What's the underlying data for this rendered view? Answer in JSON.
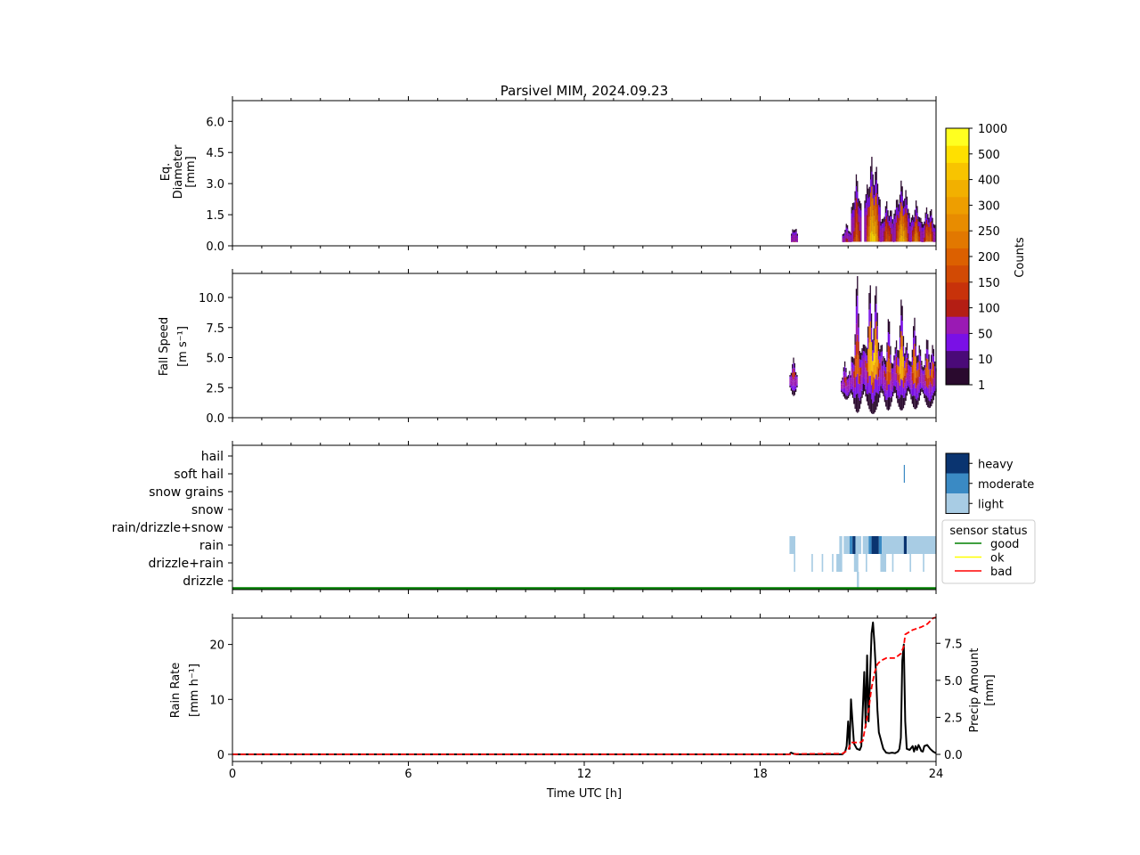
{
  "figure": {
    "title": "Parsivel MIM, 2024.09.23",
    "xlabel": "Time UTC [h]",
    "xticks": [
      "0",
      "6",
      "12",
      "18",
      "24"
    ]
  },
  "colors": {
    "counts_scale": [
      "#2a0a2e",
      "#4a0a78",
      "#7a10e6",
      "#9a1ab4",
      "#b41e14",
      "#c8320a",
      "#d24a04",
      "#dc6000",
      "#e27800",
      "#e88c00",
      "#ee9e00",
      "#f2b000",
      "#f8c400",
      "#ffe000",
      "#ffff20"
    ],
    "intensity": {
      "light": "#a8cce4",
      "moderate": "#3a8ac4",
      "heavy": "#0a3470"
    },
    "sensor": {
      "good": "#008000",
      "ok": "#ffff00",
      "bad": "#ff0000"
    },
    "rain_rate_line": "#000000",
    "precip_amount_line": "#ff0000"
  },
  "chart_data": [
    {
      "type": "heatmap",
      "name": "diameter-panel",
      "ylabel": [
        "Eq.",
        "Diameter",
        "[mm]"
      ],
      "yticks": [
        "0.0",
        "1.5",
        "3.0",
        "4.5",
        "6.0"
      ],
      "ylim": [
        0,
        7
      ],
      "xlim": [
        0,
        24
      ],
      "blobs": [
        {
          "t0": 19.05,
          "t1": 19.25,
          "top": 1.1,
          "peak": 0.6,
          "intensity": 0.25
        },
        {
          "t0": 20.8,
          "t1": 21.1,
          "top": 1.1,
          "peak": 0.6,
          "intensity": 0.3
        },
        {
          "t0": 21.1,
          "t1": 21.45,
          "top": 3.5,
          "peak": 0.7,
          "intensity": 0.45
        },
        {
          "t0": 21.55,
          "t1": 22.1,
          "top": 4.4,
          "peak": 1.0,
          "intensity": 0.85
        },
        {
          "t0": 22.1,
          "t1": 22.55,
          "top": 2.2,
          "peak": 0.8,
          "intensity": 0.45
        },
        {
          "t0": 22.55,
          "t1": 23.1,
          "top": 3.2,
          "peak": 0.9,
          "intensity": 0.75
        },
        {
          "t0": 23.1,
          "t1": 23.5,
          "top": 2.2,
          "peak": 0.8,
          "intensity": 0.6
        },
        {
          "t0": 23.5,
          "t1": 23.95,
          "top": 2.0,
          "peak": 0.8,
          "intensity": 0.55
        }
      ]
    },
    {
      "type": "heatmap",
      "name": "fallspeed-panel",
      "ylabel": [
        "Fall Speed",
        "[m s⁻¹]"
      ],
      "yticks": [
        "0.0",
        "2.5",
        "5.0",
        "7.5",
        "10.0"
      ],
      "ylim": [
        0,
        12
      ],
      "xlim": [
        0,
        24
      ],
      "blobs": [
        {
          "t0": 19.0,
          "t1": 19.25,
          "top": 5.0,
          "low": 1.8,
          "peak": 3.5,
          "intensity": 0.3
        },
        {
          "t0": 20.75,
          "t1": 21.1,
          "top": 5.0,
          "low": 1.5,
          "peak": 3.0,
          "intensity": 0.3
        },
        {
          "t0": 21.1,
          "t1": 21.5,
          "top": 12.0,
          "low": 0.4,
          "peak": 4.0,
          "intensity": 0.5
        },
        {
          "t0": 21.5,
          "t1": 22.15,
          "top": 12.0,
          "low": 0.3,
          "peak": 5.0,
          "intensity": 0.9
        },
        {
          "t0": 22.15,
          "t1": 22.55,
          "top": 8.5,
          "low": 0.6,
          "peak": 4.0,
          "intensity": 0.5
        },
        {
          "t0": 22.55,
          "t1": 23.05,
          "top": 10.0,
          "low": 0.6,
          "peak": 4.5,
          "intensity": 0.8
        },
        {
          "t0": 23.05,
          "t1": 23.5,
          "top": 8.5,
          "low": 0.7,
          "peak": 4.2,
          "intensity": 0.6
        },
        {
          "t0": 23.5,
          "t1": 24.0,
          "top": 7.0,
          "low": 0.8,
          "peak": 4.0,
          "intensity": 0.55
        }
      ]
    },
    {
      "type": "heatmap",
      "name": "precip-type-panel",
      "categories": [
        "drizzle",
        "drizzle+rain",
        "rain",
        "rain/drizzle+snow",
        "snow",
        "snow grains",
        "soft hail",
        "hail"
      ],
      "xlim": [
        0,
        24
      ],
      "cells": [
        {
          "cat": "rain",
          "t0": 19.0,
          "t1": 19.2,
          "level": "light"
        },
        {
          "cat": "rain",
          "t0": 20.7,
          "t1": 20.8,
          "level": "light"
        },
        {
          "cat": "rain",
          "t0": 20.85,
          "t1": 21.05,
          "level": "light"
        },
        {
          "cat": "rain",
          "t0": 21.05,
          "t1": 21.15,
          "level": "moderate"
        },
        {
          "cat": "rain",
          "t0": 21.15,
          "t1": 21.25,
          "level": "heavy"
        },
        {
          "cat": "rain",
          "t0": 21.25,
          "t1": 21.45,
          "level": "light"
        },
        {
          "cat": "rain",
          "t0": 21.5,
          "t1": 21.7,
          "level": "light"
        },
        {
          "cat": "rain",
          "t0": 21.7,
          "t1": 21.8,
          "level": "moderate"
        },
        {
          "cat": "rain",
          "t0": 21.8,
          "t1": 22.05,
          "level": "heavy"
        },
        {
          "cat": "rain",
          "t0": 22.05,
          "t1": 22.15,
          "level": "moderate"
        },
        {
          "cat": "rain",
          "t0": 22.15,
          "t1": 22.9,
          "level": "light"
        },
        {
          "cat": "rain",
          "t0": 22.9,
          "t1": 23.0,
          "level": "heavy"
        },
        {
          "cat": "rain",
          "t0": 23.0,
          "t1": 24.0,
          "level": "light"
        },
        {
          "cat": "drizzle+rain",
          "t0": 19.15,
          "t1": 19.2,
          "level": "light"
        },
        {
          "cat": "drizzle+rain",
          "t0": 19.75,
          "t1": 19.8,
          "level": "light"
        },
        {
          "cat": "drizzle+rain",
          "t0": 20.1,
          "t1": 20.15,
          "level": "light"
        },
        {
          "cat": "drizzle+rain",
          "t0": 20.45,
          "t1": 20.5,
          "level": "light"
        },
        {
          "cat": "drizzle+rain",
          "t0": 20.6,
          "t1": 20.8,
          "level": "light"
        },
        {
          "cat": "drizzle+rain",
          "t0": 21.2,
          "t1": 21.35,
          "level": "light"
        },
        {
          "cat": "drizzle+rain",
          "t0": 21.6,
          "t1": 21.65,
          "level": "light"
        },
        {
          "cat": "drizzle+rain",
          "t0": 22.1,
          "t1": 22.3,
          "level": "light"
        },
        {
          "cat": "drizzle+rain",
          "t0": 22.5,
          "t1": 22.55,
          "level": "light"
        },
        {
          "cat": "drizzle+rain",
          "t0": 23.1,
          "t1": 23.15,
          "level": "light"
        },
        {
          "cat": "drizzle+rain",
          "t0": 23.55,
          "t1": 23.6,
          "level": "light"
        },
        {
          "cat": "drizzle",
          "t0": 21.3,
          "t1": 21.37,
          "level": "light"
        },
        {
          "cat": "soft hail",
          "t0": 22.9,
          "t1": 22.93,
          "level": "moderate"
        }
      ],
      "intensity_legend": [
        "heavy",
        "moderate",
        "light"
      ],
      "sensor_legend": {
        "title": "sensor status",
        "items": [
          "good",
          "ok",
          "bad"
        ]
      },
      "sensor_status_line": "good"
    },
    {
      "type": "line",
      "name": "rain-panel",
      "ylabel": [
        "Rain Rate",
        "[mm h⁻¹]"
      ],
      "y2label": [
        "Precip Amount",
        "[mm]"
      ],
      "yticks": [
        "0",
        "10",
        "20"
      ],
      "y2ticks": [
        "0.0",
        "2.5",
        "5.0",
        "7.5"
      ],
      "ylim": [
        -1.3,
        24.8
      ],
      "y2lim": [
        -0.48,
        9.2
      ],
      "xlim": [
        0,
        24
      ],
      "series": [
        {
          "axis": "left",
          "x": [
            0,
            19.0,
            19.05,
            19.15,
            19.25,
            20.8,
            20.9,
            20.95,
            21.0,
            21.05,
            21.1,
            21.2,
            21.3,
            21.4,
            21.45,
            21.5,
            21.55,
            21.6,
            21.65,
            21.7,
            21.75,
            21.8,
            21.85,
            21.9,
            21.95,
            22.0,
            22.05,
            22.1,
            22.15,
            22.2,
            22.3,
            22.4,
            22.5,
            22.6,
            22.7,
            22.75,
            22.8,
            22.85,
            22.9,
            22.95,
            23.0,
            23.1,
            23.2,
            23.25,
            23.3,
            23.35,
            23.4,
            23.45,
            23.5,
            23.55,
            23.6,
            23.7,
            23.8,
            23.9,
            24.0
          ],
          "y": [
            0,
            0,
            0.3,
            0.1,
            0,
            0,
            0.5,
            1.5,
            6,
            1,
            10,
            2,
            1,
            0.8,
            1.5,
            8,
            15,
            5,
            18,
            6,
            14,
            22,
            24,
            20,
            15,
            8,
            4,
            3,
            2,
            1,
            0.3,
            0.2,
            0.3,
            0.2,
            0.5,
            1,
            3,
            17,
            20,
            6,
            1,
            0.8,
            1.5,
            0.5,
            1.5,
            0.8,
            1.7,
            1.2,
            0.6,
            0.5,
            1.5,
            1.7,
            1.0,
            0.5,
            0.2
          ]
        },
        {
          "axis": "right",
          "x": [
            0,
            19.0,
            19.3,
            20.8,
            21.0,
            21.1,
            21.4,
            21.5,
            21.6,
            21.7,
            21.8,
            21.9,
            22.0,
            22.1,
            22.3,
            22.6,
            22.8,
            22.9,
            22.95,
            23.2,
            23.5,
            23.7,
            23.9,
            24.0
          ],
          "y": [
            0,
            0,
            0.03,
            0.05,
            0.3,
            0.8,
            0.8,
            0.9,
            2.0,
            3.0,
            4.5,
            5.5,
            6.1,
            6.3,
            6.5,
            6.5,
            6.8,
            7.3,
            8.1,
            8.4,
            8.6,
            8.8,
            9.2,
            9.25
          ]
        }
      ]
    }
  ],
  "colorbar": {
    "label": "Counts",
    "ticks": [
      "1000",
      "500",
      "400",
      "300",
      "250",
      "200",
      "150",
      "100",
      "50",
      "10",
      "1"
    ]
  }
}
